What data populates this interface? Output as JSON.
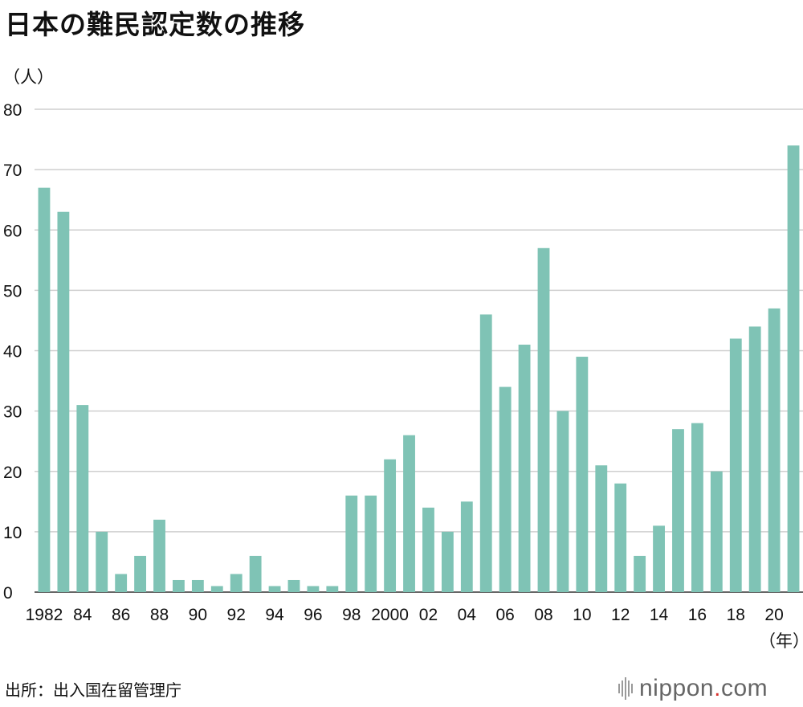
{
  "title": "日本の難民認定数の推移",
  "source": "出所：出入国在留管理庁",
  "brand": {
    "name": "nippon",
    "dot": ".",
    "tld": "com"
  },
  "colors": {
    "bar": "#7fc3b5",
    "grid": "#cfcfcf",
    "axis": "#333333",
    "brand_dot": "#d8332e"
  },
  "chart_data": {
    "type": "bar",
    "title": "日本の難民認定数の推移",
    "ylabel": "（人）",
    "xlabel": "（年）",
    "ylim": [
      0,
      80
    ],
    "yticks": [
      0,
      10,
      20,
      30,
      40,
      50,
      60,
      70,
      80
    ],
    "grid": true,
    "categories": [
      "1982",
      "1983",
      "1984",
      "1985",
      "1986",
      "1987",
      "1988",
      "1989",
      "1990",
      "1991",
      "1992",
      "1993",
      "1994",
      "1995",
      "1996",
      "1997",
      "1998",
      "1999",
      "2000",
      "2001",
      "2002",
      "2003",
      "2004",
      "2005",
      "2006",
      "2007",
      "2008",
      "2009",
      "2010",
      "2011",
      "2012",
      "2013",
      "2014",
      "2015",
      "2016",
      "2017",
      "2018",
      "2019",
      "2020",
      "2021"
    ],
    "values": [
      67,
      63,
      31,
      10,
      3,
      6,
      12,
      2,
      2,
      1,
      3,
      6,
      1,
      2,
      1,
      1,
      16,
      16,
      22,
      26,
      14,
      10,
      15,
      46,
      34,
      41,
      57,
      30,
      39,
      21,
      18,
      6,
      11,
      27,
      28,
      20,
      42,
      44,
      47,
      74
    ],
    "tick_labels": [
      "1982",
      "",
      "84",
      "",
      "86",
      "",
      "88",
      "",
      "90",
      "",
      "92",
      "",
      "94",
      "",
      "96",
      "",
      "98",
      "",
      "2000",
      "",
      "02",
      "",
      "04",
      "",
      "06",
      "",
      "08",
      "",
      "10",
      "",
      "12",
      "",
      "14",
      "",
      "16",
      "",
      "18",
      "",
      "20",
      ""
    ]
  }
}
